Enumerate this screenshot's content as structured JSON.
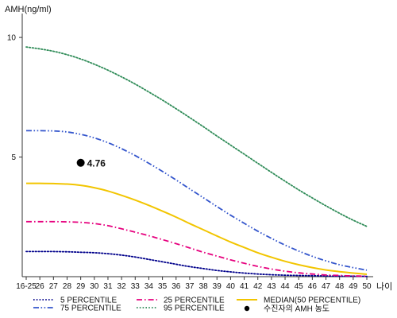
{
  "chart_data": {
    "type": "line",
    "ylabel": "AMH(ng/ml)",
    "xlabel": "나이",
    "x_ticks": [
      "16-25",
      "26",
      "27",
      "28",
      "29",
      "30",
      "31",
      "32",
      "33",
      "34",
      "35",
      "36",
      "37",
      "38",
      "39",
      "40",
      "41",
      "42",
      "43",
      "44",
      "45",
      "46",
      "47",
      "48",
      "49",
      "50"
    ],
    "y_ticks": [
      "5",
      "10"
    ],
    "ylim": [
      0,
      11
    ],
    "grid": false,
    "legend_position": "bottom",
    "series": [
      {
        "name": "5 PERCENTILE",
        "color": "#00008b",
        "style": "dotted",
        "values": [
          1.05,
          1.05,
          1.05,
          1.04,
          1.02,
          1.0,
          0.96,
          0.9,
          0.82,
          0.72,
          0.62,
          0.52,
          0.42,
          0.34,
          0.26,
          0.2,
          0.15,
          0.11,
          0.08,
          0.06,
          0.05,
          0.04,
          0.03,
          0.02,
          0.02,
          0.01
        ]
      },
      {
        "name": "25 PERCENTILE",
        "color": "#e6007e",
        "style": "dashdot",
        "values": [
          2.3,
          2.3,
          2.3,
          2.29,
          2.27,
          2.22,
          2.13,
          2.0,
          1.86,
          1.71,
          1.55,
          1.38,
          1.2,
          1.02,
          0.86,
          0.7,
          0.56,
          0.43,
          0.32,
          0.23,
          0.16,
          0.11,
          0.07,
          0.05,
          0.03,
          0.02
        ]
      },
      {
        "name": "MEDIAN(50 PERCENTILE)",
        "color": "#f2c500",
        "style": "solid",
        "values": [
          3.9,
          3.9,
          3.89,
          3.87,
          3.82,
          3.72,
          3.58,
          3.4,
          3.2,
          2.98,
          2.74,
          2.49,
          2.22,
          1.96,
          1.7,
          1.45,
          1.22,
          1.0,
          0.81,
          0.64,
          0.5,
          0.38,
          0.28,
          0.21,
          0.15,
          0.1
        ]
      },
      {
        "name": "75 PERCENTILE",
        "color": "#3355cc",
        "style": "dashdotdot",
        "values": [
          6.1,
          6.1,
          6.09,
          6.05,
          5.95,
          5.8,
          5.6,
          5.35,
          5.06,
          4.74,
          4.4,
          4.04,
          3.67,
          3.3,
          2.93,
          2.57,
          2.23,
          1.9,
          1.6,
          1.32,
          1.07,
          0.85,
          0.66,
          0.5,
          0.38,
          0.27
        ]
      },
      {
        "name": "95 PERCENTILE",
        "color": "#2e8b57",
        "style": "dotted",
        "values": [
          9.6,
          9.52,
          9.42,
          9.28,
          9.1,
          8.88,
          8.63,
          8.35,
          8.05,
          7.72,
          7.38,
          7.02,
          6.65,
          6.27,
          5.88,
          5.5,
          5.12,
          4.74,
          4.36,
          3.99,
          3.63,
          3.29,
          2.96,
          2.65,
          2.36,
          2.1
        ]
      }
    ],
    "point": {
      "name": "수진자의 AMH 농도",
      "x": "29",
      "y": 4.76,
      "label": "4.76"
    }
  }
}
